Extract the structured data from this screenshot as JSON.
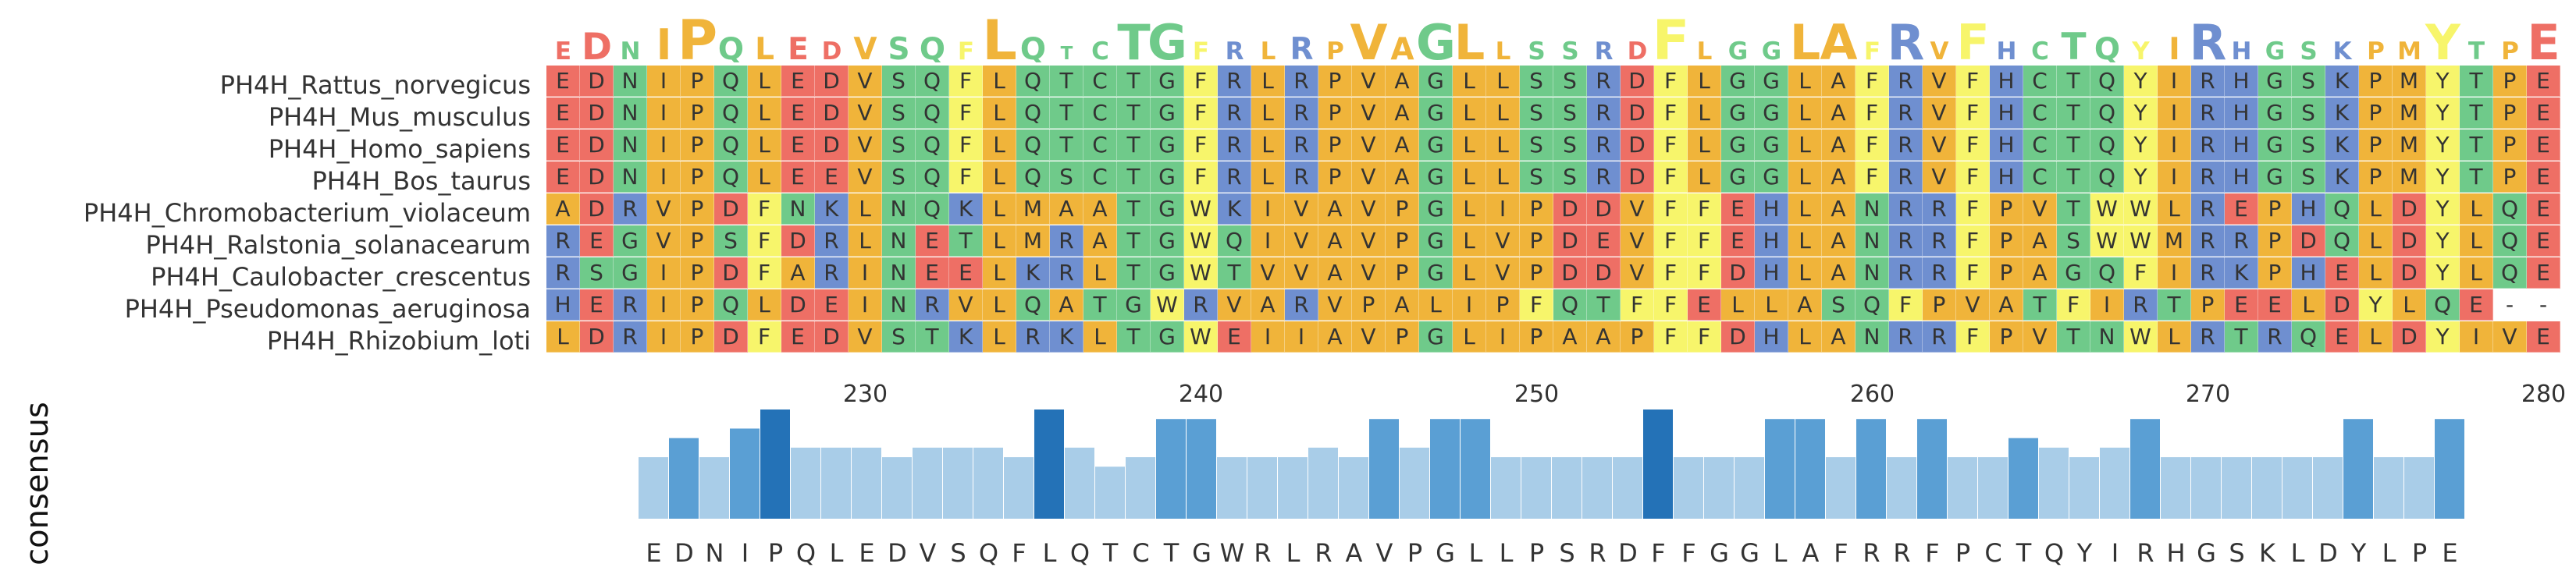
{
  "figure": {
    "sequence_names": [
      "PH4H_Rattus_norvegicus",
      "PH4H_Mus_musculus",
      "PH4H_Homo_sapiens",
      "PH4H_Bos_taurus",
      "PH4H_Chromobacterium_violaceum",
      "PH4H_Ralstonia_solanacearum",
      "PH4H_Caulobacter_crescentus",
      "PH4H_Pseudomonas_aeruginosa",
      "PH4H_Rhizobium_loti"
    ],
    "sequences": [
      "EDNIPQLEDVSQFLQTCTGFRLRPVAGLLSSRDFLGGLAFRVFHCTQYIRHGSKPMYTPE",
      "EDNIPQLEDVSQFLQTCTGFRLRPVAGLLSSRDFLGGLAFRVFHCTQYIRHGSKPMYTPE",
      "EDNIPQLEDVSQFLQTCTGFRLRPVAGLLSSRDFLGGLAFRVFHCTQYIRHGSKPMYTPE",
      "EDNIPQLEEVSQFLQSCTGFRLRPVAGLLSSRDFLGGLAFRVFHCTQYIRHGSKPMYTPE",
      "ADRVPDFNKLNQKLMAATGWKIVAVPGLIPDDVFFEHLANRRFPVTWWLREPHQLDYLQE",
      "REGVPSFDRLNETLMRATGWQIVAVPGLVPDEVFFEHLANRRFPASWWMRRPDQLDYLQE",
      "RSGIPDFARINEELKRLTGWTVVAVPGLVPDDVFFDHLANRRFPAGQFIRKPHELDYLQE",
      "HERIPQLDEINRVLQATGWRVARVPALIPFQTFFELLASQFPVATFIRTPEELDYLQE",
      "LDRIPDFEDVSTKLRKLTGWEIIAVPGLIPAAPFFDHLANRRFPVTNWLRTRQELDYIVE"
    ],
    "axis_ticks": [
      "230",
      "240",
      "250",
      "260",
      "270",
      "280"
    ],
    "axis_label": "consensus",
    "consensus_sequence": "EDNIPQLEDVSQFLQTCTGWRLRAVPGLLPSRDFFGGLAFRRFPCTQYIRHGSKLDYLPE",
    "colors": {
      "acidic": "#ee6f65",
      "hydrophobic": "#f0b43a",
      "polar": "#6fca8a",
      "aromatic": "#f7f56b",
      "basic": "#6f8fd0",
      "conservation_high": "#2472b7",
      "conservation_low": "#a9cde8"
    }
  }
}
